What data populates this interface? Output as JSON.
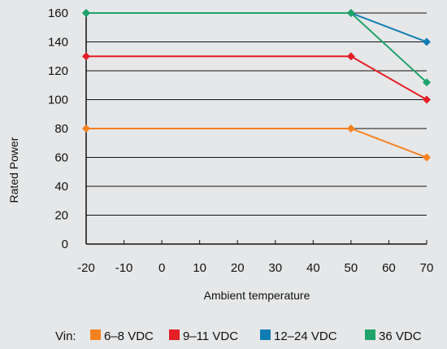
{
  "chart_data": {
    "type": "line",
    "xlabel": "Ambient temperature",
    "ylabel": "Rated Power",
    "x_ticks": [
      -20,
      -10,
      0,
      10,
      20,
      30,
      40,
      50,
      60,
      70
    ],
    "y_ticks": [
      0,
      20,
      40,
      60,
      80,
      100,
      120,
      140,
      160
    ],
    "xlim": [
      -20,
      70
    ],
    "ylim": [
      0,
      160
    ],
    "grid": "horizontal",
    "legend_placement": "bottom",
    "legend_prefix": "Vin:",
    "series": [
      {
        "name": "6–8 VDC",
        "color": "#f58220",
        "points": [
          [
            -20,
            80
          ],
          [
            50,
            80
          ],
          [
            70,
            60
          ]
        ]
      },
      {
        "name": "9–11 VDC",
        "color": "#e31e24",
        "points": [
          [
            -20,
            130
          ],
          [
            50,
            130
          ],
          [
            70,
            100
          ]
        ]
      },
      {
        "name": "12–24 VDC",
        "color": "#0f7db5",
        "points": [
          [
            -20,
            160
          ],
          [
            50,
            160
          ],
          [
            70,
            140
          ]
        ]
      },
      {
        "name": "36 VDC",
        "color": "#1fa36a",
        "points": [
          [
            -20,
            160
          ],
          [
            50,
            160
          ],
          [
            70,
            112
          ]
        ]
      }
    ]
  }
}
